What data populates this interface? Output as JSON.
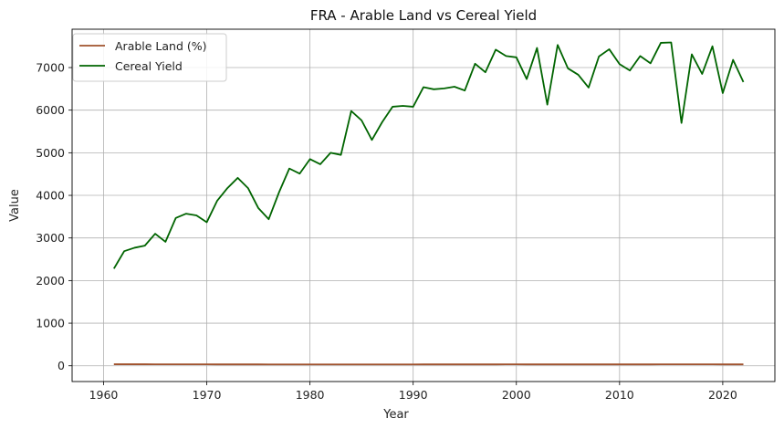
{
  "chart_data": {
    "type": "line",
    "title": "FRA - Arable Land vs Cereal Yield",
    "xlabel": "Year",
    "ylabel": "Value",
    "xlim": [
      1956.95,
      2025.05
    ],
    "ylim": [
      -370,
      7900
    ],
    "xticks": [
      1960,
      1970,
      1980,
      1990,
      2000,
      2010,
      2020
    ],
    "yticks": [
      0,
      1000,
      2000,
      3000,
      4000,
      5000,
      6000,
      7000
    ],
    "grid": true,
    "legend": "top-left",
    "x": [
      1961,
      1962,
      1963,
      1964,
      1965,
      1966,
      1967,
      1968,
      1969,
      1970,
      1971,
      1972,
      1973,
      1974,
      1975,
      1976,
      1977,
      1978,
      1979,
      1980,
      1981,
      1982,
      1983,
      1984,
      1985,
      1986,
      1987,
      1988,
      1989,
      1990,
      1991,
      1992,
      1993,
      1994,
      1995,
      1996,
      1997,
      1998,
      1999,
      2000,
      2001,
      2002,
      2003,
      2004,
      2005,
      2006,
      2007,
      2008,
      2009,
      2010,
      2011,
      2012,
      2013,
      2014,
      2015,
      2016,
      2017,
      2018,
      2019,
      2020,
      2021,
      2022
    ],
    "series": [
      {
        "name": "Arable Land (%)",
        "color": "#a0522d",
        "values": [
          36,
          35.8,
          35.6,
          35.3,
          35.1,
          34.8,
          34.5,
          34.2,
          33.9,
          33.6,
          33.4,
          33.2,
          33,
          32.8,
          32.6,
          32.4,
          32.3,
          32.2,
          32.1,
          32,
          32,
          32,
          31.9,
          31.9,
          31.8,
          31.8,
          31.7,
          31.6,
          31.6,
          32.3,
          32.5,
          32.5,
          32.6,
          32.7,
          33.2,
          33.3,
          33.4,
          33.5,
          33.6,
          33.6,
          33.5,
          33.4,
          33.4,
          33.4,
          33.5,
          33.4,
          33.5,
          33.5,
          33.5,
          33.4,
          33.5,
          33.5,
          33.5,
          33.6,
          33.7,
          33.7,
          33.7,
          33.6,
          33.6,
          33.4,
          33.4,
          33.4
        ]
      },
      {
        "name": "Cereal Yield",
        "color": "#006400",
        "values": [
          2280,
          2690,
          2770,
          2820,
          3100,
          2910,
          3470,
          3570,
          3530,
          3370,
          3870,
          4170,
          4410,
          4170,
          3700,
          3440,
          4070,
          4630,
          4510,
          4850,
          4730,
          5000,
          4950,
          5980,
          5760,
          5300,
          5720,
          6080,
          6100,
          6080,
          6540,
          6490,
          6510,
          6550,
          6460,
          7090,
          6890,
          7420,
          7270,
          7240,
          6730,
          7460,
          6130,
          7530,
          6980,
          6830,
          6530,
          7260,
          7430,
          7080,
          6930,
          7270,
          7100,
          7580,
          7590,
          5700,
          7310,
          6850,
          7500,
          6400,
          7180,
          6660
        ]
      }
    ]
  }
}
